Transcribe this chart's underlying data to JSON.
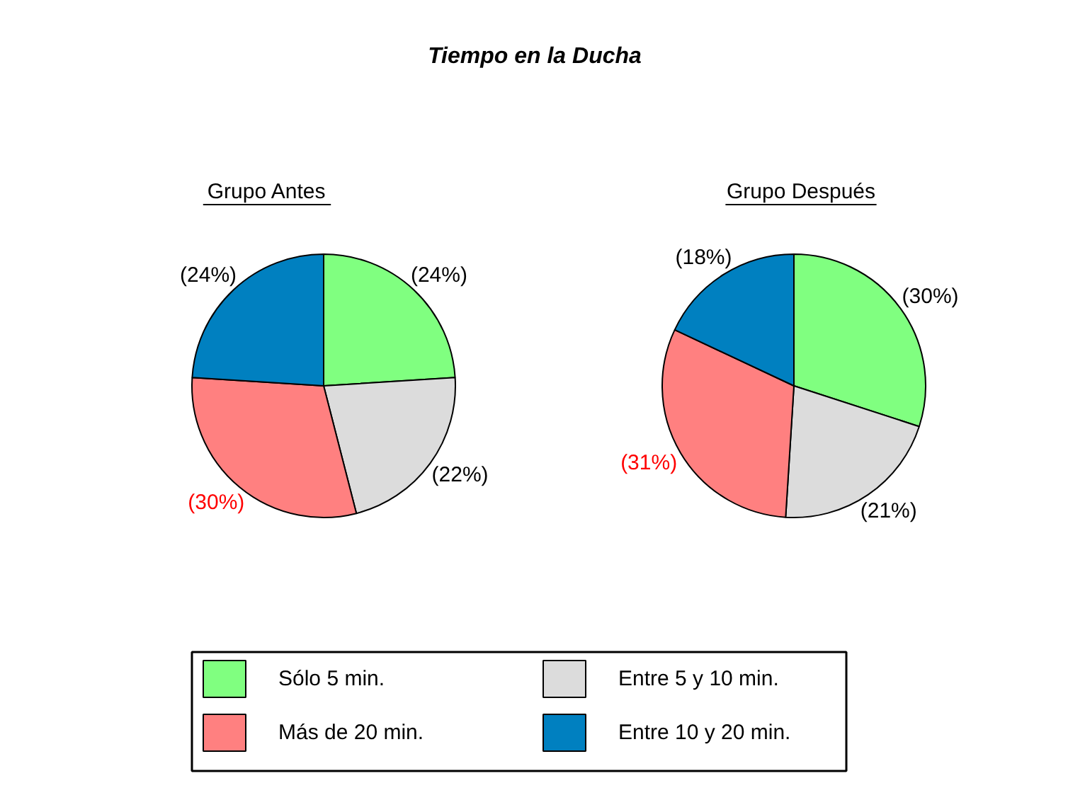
{
  "chart_data": {
    "type": "pie",
    "title": "Tiempo en la Ducha",
    "categories": [
      "Sólo 5 min.",
      "Entre 5 y 10 min.",
      "Más de 20 min.",
      "Entre 10 y 20 min."
    ],
    "colors": [
      "#80ff80",
      "#dcdcdc",
      "#ff8080",
      "#0080c0"
    ],
    "legend": "bottom",
    "series": [
      {
        "name": "Grupo Antes",
        "values": [
          24,
          22,
          30,
          24
        ],
        "value_labels": [
          "(24%)",
          "(22%)",
          "(30%)",
          "(24%)"
        ]
      },
      {
        "name": "Grupo Después",
        "values": [
          30,
          21,
          31,
          18
        ],
        "value_labels": [
          "(30%)",
          "(21%)",
          "(31%)",
          "(18%)"
        ]
      }
    ]
  }
}
